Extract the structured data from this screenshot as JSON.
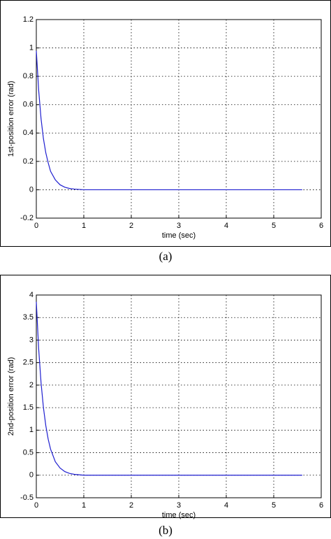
{
  "chart_data": [
    {
      "type": "line",
      "caption": "(a)",
      "xlabel": "time (sec)",
      "ylabel": "1st-position error (rad)",
      "x": [
        0,
        0.05,
        0.1,
        0.15,
        0.2,
        0.25,
        0.3,
        0.4,
        0.5,
        0.6,
        0.7,
        0.8,
        1,
        1.5,
        2,
        3,
        4,
        5,
        5.6
      ],
      "values": [
        0.98,
        0.7,
        0.5,
        0.36,
        0.26,
        0.19,
        0.13,
        0.07,
        0.035,
        0.018,
        0.009,
        0.005,
        0,
        0,
        0,
        0,
        0,
        0,
        0
      ],
      "color": "#1f1fd0",
      "xlim": [
        0,
        6
      ],
      "ylim": [
        -0.2,
        1.2
      ],
      "xticks": [
        0,
        1,
        2,
        3,
        4,
        5,
        6
      ],
      "yticks": [
        -0.2,
        0,
        0.2,
        0.4,
        0.6,
        0.8,
        1,
        1.2
      ],
      "grid": true
    },
    {
      "type": "line",
      "caption": "(b)",
      "xlabel": "time (sec)",
      "ylabel": "2nd-position error (rad)",
      "x": [
        0,
        0.05,
        0.1,
        0.15,
        0.2,
        0.25,
        0.3,
        0.4,
        0.5,
        0.6,
        0.7,
        0.8,
        1,
        1.5,
        2,
        3,
        4,
        5,
        5.6
      ],
      "values": [
        3.85,
        2.8,
        2.05,
        1.5,
        1.1,
        0.8,
        0.58,
        0.3,
        0.16,
        0.08,
        0.04,
        0.02,
        0,
        0,
        0,
        0,
        0,
        0,
        0
      ],
      "color": "#1f1fd0",
      "xlim": [
        0,
        6
      ],
      "ylim": [
        -0.5,
        4
      ],
      "xticks": [
        0,
        1,
        2,
        3,
        4,
        5,
        6
      ],
      "yticks": [
        -0.5,
        0,
        0.5,
        1,
        1.5,
        2,
        2.5,
        3,
        3.5,
        4
      ],
      "grid": true
    }
  ]
}
